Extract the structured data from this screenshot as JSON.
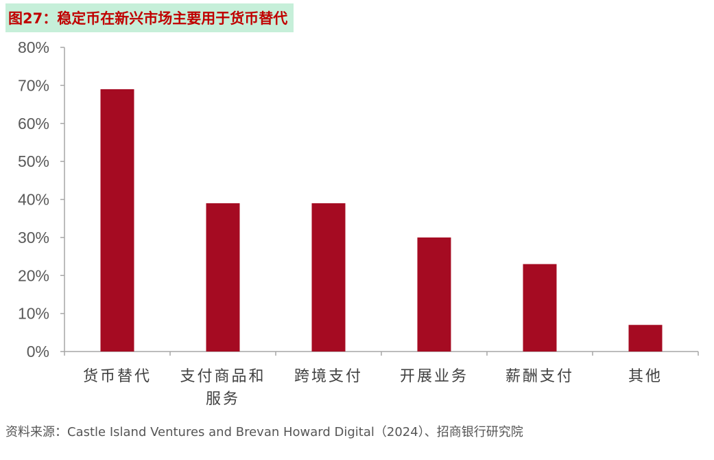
{
  "header": {
    "title": "图27：稳定币在新兴市场主要用于货币替代"
  },
  "chart_data": {
    "type": "bar",
    "categories": [
      "货币替代",
      "支付商品和服务",
      "跨境支付",
      "开展业务",
      "薪酬支付",
      "其他"
    ],
    "category_label_lines": [
      [
        "货币替代"
      ],
      [
        "支付商品和",
        "服务"
      ],
      [
        "跨境支付"
      ],
      [
        "开展业务"
      ],
      [
        "薪酬支付"
      ],
      [
        "其他"
      ]
    ],
    "values": [
      69,
      39,
      39,
      30,
      23,
      7
    ],
    "ylim": [
      0,
      80
    ],
    "yticks": [
      0,
      10,
      20,
      30,
      40,
      50,
      60,
      70,
      80
    ],
    "ytick_labels": [
      "0%",
      "10%",
      "20%",
      "30%",
      "40%",
      "50%",
      "60%",
      "70%",
      "80%"
    ],
    "bar_color": "#a50b22",
    "grid": false,
    "title": "",
    "xlabel": "",
    "ylabel": ""
  },
  "footer": {
    "source": "资料来源：Castle Island Ventures and Brevan Howard Digital（2024）、招商银行研究院"
  }
}
